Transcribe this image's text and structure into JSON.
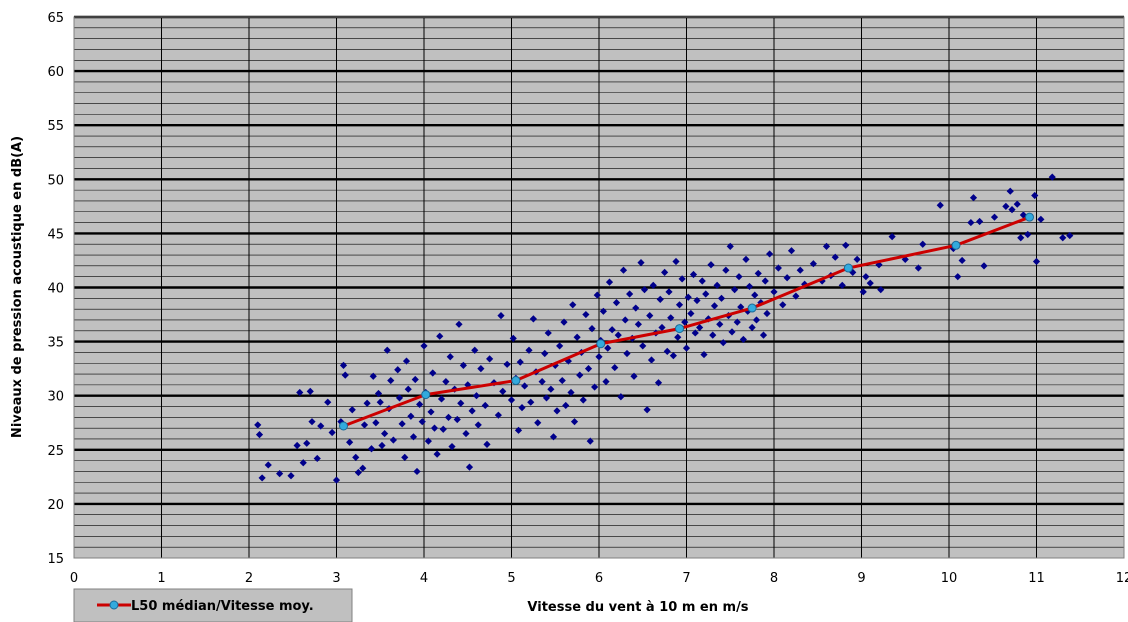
{
  "chart_data": {
    "type": "scatter",
    "title": "",
    "xlabel": "Vitesse du vent  à 10 m en m/s",
    "ylabel": "Niveaux de pression acoustique en dB(A)",
    "xlim": [
      0,
      12
    ],
    "ylim": [
      15,
      65
    ],
    "xticks": [
      "0",
      "1",
      "2",
      "3",
      "4",
      "5",
      "6",
      "7",
      "8",
      "9",
      "10",
      "11",
      "12"
    ],
    "yticks": [
      "15",
      "20",
      "25",
      "30",
      "35",
      "40",
      "45",
      "50",
      "55",
      "60",
      "65"
    ],
    "grid": true,
    "plot_background": "#c0c0c0",
    "legend": {
      "placement": "bottom-left",
      "entries": [
        "L50 médian/Vitesse moy."
      ]
    },
    "series": [
      {
        "name": "",
        "kind": "scatter",
        "marker": "diamond",
        "color": "#00008b",
        "points": [
          [
            2.1,
            27.3
          ],
          [
            2.12,
            26.4
          ],
          [
            2.15,
            22.4
          ],
          [
            2.22,
            23.6
          ],
          [
            2.35,
            22.8
          ],
          [
            2.48,
            22.6
          ],
          [
            2.55,
            25.4
          ],
          [
            2.58,
            30.3
          ],
          [
            2.62,
            23.8
          ],
          [
            2.66,
            25.6
          ],
          [
            2.7,
            30.4
          ],
          [
            2.72,
            27.6
          ],
          [
            2.78,
            24.2
          ],
          [
            2.82,
            27.2
          ],
          [
            2.9,
            29.4
          ],
          [
            2.95,
            26.6
          ],
          [
            3.0,
            22.2
          ],
          [
            3.05,
            27.6
          ],
          [
            3.08,
            32.8
          ],
          [
            3.1,
            31.9
          ],
          [
            3.15,
            25.7
          ],
          [
            3.18,
            28.7
          ],
          [
            3.22,
            24.3
          ],
          [
            3.25,
            22.9
          ],
          [
            3.3,
            23.3
          ],
          [
            3.32,
            27.3
          ],
          [
            3.35,
            29.3
          ],
          [
            3.4,
            25.1
          ],
          [
            3.42,
            31.8
          ],
          [
            3.45,
            27.5
          ],
          [
            3.48,
            30.2
          ],
          [
            3.5,
            29.4
          ],
          [
            3.52,
            25.4
          ],
          [
            3.55,
            26.5
          ],
          [
            3.58,
            34.2
          ],
          [
            3.6,
            28.8
          ],
          [
            3.62,
            31.4
          ],
          [
            3.65,
            25.9
          ],
          [
            3.7,
            32.4
          ],
          [
            3.72,
            29.8
          ],
          [
            3.75,
            27.4
          ],
          [
            3.78,
            24.3
          ],
          [
            3.8,
            33.2
          ],
          [
            3.82,
            30.6
          ],
          [
            3.85,
            28.1
          ],
          [
            3.88,
            26.2
          ],
          [
            3.9,
            31.5
          ],
          [
            3.92,
            23.0
          ],
          [
            3.95,
            29.2
          ],
          [
            3.98,
            27.6
          ],
          [
            4.0,
            34.6
          ],
          [
            4.02,
            30.3
          ],
          [
            4.05,
            25.8
          ],
          [
            4.08,
            28.5
          ],
          [
            4.1,
            32.1
          ],
          [
            4.12,
            27.0
          ],
          [
            4.15,
            24.6
          ],
          [
            4.18,
            35.5
          ],
          [
            4.2,
            29.7
          ],
          [
            4.22,
            26.9
          ],
          [
            4.25,
            31.3
          ],
          [
            4.28,
            28.0
          ],
          [
            4.3,
            33.6
          ],
          [
            4.32,
            25.3
          ],
          [
            4.35,
            30.6
          ],
          [
            4.38,
            27.8
          ],
          [
            4.4,
            36.6
          ],
          [
            4.42,
            29.3
          ],
          [
            4.45,
            32.8
          ],
          [
            4.48,
            26.5
          ],
          [
            4.5,
            31.0
          ],
          [
            4.52,
            23.4
          ],
          [
            4.55,
            28.6
          ],
          [
            4.58,
            34.2
          ],
          [
            4.6,
            30.0
          ],
          [
            4.62,
            27.3
          ],
          [
            4.65,
            32.5
          ],
          [
            4.7,
            29.1
          ],
          [
            4.72,
            25.5
          ],
          [
            4.75,
            33.4
          ],
          [
            4.8,
            31.2
          ],
          [
            4.85,
            28.2
          ],
          [
            4.88,
            37.4
          ],
          [
            4.9,
            30.4
          ],
          [
            4.95,
            32.9
          ],
          [
            5.0,
            29.6
          ],
          [
            5.02,
            35.3
          ],
          [
            5.05,
            31.6
          ],
          [
            5.08,
            26.8
          ],
          [
            5.1,
            33.1
          ],
          [
            5.12,
            28.9
          ],
          [
            5.15,
            30.9
          ],
          [
            5.2,
            34.2
          ],
          [
            5.22,
            29.4
          ],
          [
            5.25,
            37.1
          ],
          [
            5.28,
            32.2
          ],
          [
            5.3,
            27.5
          ],
          [
            5.35,
            31.3
          ],
          [
            5.38,
            33.9
          ],
          [
            5.4,
            29.8
          ],
          [
            5.42,
            35.8
          ],
          [
            5.45,
            30.6
          ],
          [
            5.48,
            26.2
          ],
          [
            5.5,
            32.8
          ],
          [
            5.52,
            28.6
          ],
          [
            5.55,
            34.6
          ],
          [
            5.58,
            31.4
          ],
          [
            5.6,
            36.8
          ],
          [
            5.62,
            29.1
          ],
          [
            5.65,
            33.2
          ],
          [
            5.68,
            30.3
          ],
          [
            5.7,
            38.4
          ],
          [
            5.72,
            27.6
          ],
          [
            5.75,
            35.4
          ],
          [
            5.78,
            31.9
          ],
          [
            5.8,
            34.0
          ],
          [
            5.82,
            29.6
          ],
          [
            5.85,
            37.5
          ],
          [
            5.88,
            32.5
          ],
          [
            5.9,
            25.8
          ],
          [
            5.92,
            36.2
          ],
          [
            5.95,
            30.8
          ],
          [
            5.98,
            39.3
          ],
          [
            6.0,
            33.6
          ],
          [
            6.02,
            35.1
          ],
          [
            6.05,
            37.8
          ],
          [
            6.08,
            31.3
          ],
          [
            6.1,
            34.4
          ],
          [
            6.12,
            40.5
          ],
          [
            6.15,
            36.1
          ],
          [
            6.18,
            32.6
          ],
          [
            6.2,
            38.6
          ],
          [
            6.22,
            35.6
          ],
          [
            6.25,
            29.9
          ],
          [
            6.28,
            41.6
          ],
          [
            6.3,
            37.0
          ],
          [
            6.32,
            33.9
          ],
          [
            6.35,
            39.4
          ],
          [
            6.38,
            35.3
          ],
          [
            6.4,
            31.8
          ],
          [
            6.42,
            38.1
          ],
          [
            6.45,
            36.6
          ],
          [
            6.48,
            42.3
          ],
          [
            6.5,
            34.6
          ],
          [
            6.52,
            39.8
          ],
          [
            6.55,
            28.7
          ],
          [
            6.58,
            37.4
          ],
          [
            6.6,
            33.3
          ],
          [
            6.62,
            40.2
          ],
          [
            6.65,
            35.8
          ],
          [
            6.68,
            31.2
          ],
          [
            6.7,
            38.9
          ],
          [
            6.72,
            36.3
          ],
          [
            6.75,
            41.4
          ],
          [
            6.78,
            34.1
          ],
          [
            6.8,
            39.6
          ],
          [
            6.82,
            37.2
          ],
          [
            6.85,
            33.7
          ],
          [
            6.88,
            42.4
          ],
          [
            6.9,
            35.4
          ],
          [
            6.92,
            38.4
          ],
          [
            6.95,
            40.8
          ],
          [
            6.98,
            36.8
          ],
          [
            7.0,
            34.4
          ],
          [
            7.02,
            39.1
          ],
          [
            7.05,
            37.6
          ],
          [
            7.08,
            41.2
          ],
          [
            7.1,
            35.8
          ],
          [
            7.12,
            38.8
          ],
          [
            7.15,
            36.3
          ],
          [
            7.18,
            40.6
          ],
          [
            7.2,
            33.8
          ],
          [
            7.22,
            39.4
          ],
          [
            7.25,
            37.1
          ],
          [
            7.28,
            42.1
          ],
          [
            7.3,
            35.6
          ],
          [
            7.32,
            38.3
          ],
          [
            7.35,
            40.2
          ],
          [
            7.38,
            36.6
          ],
          [
            7.4,
            39.0
          ],
          [
            7.42,
            34.9
          ],
          [
            7.45,
            41.6
          ],
          [
            7.48,
            37.4
          ],
          [
            7.5,
            43.8
          ],
          [
            7.52,
            35.9
          ],
          [
            7.55,
            39.8
          ],
          [
            7.58,
            36.8
          ],
          [
            7.6,
            41.0
          ],
          [
            7.62,
            38.2
          ],
          [
            7.65,
            35.2
          ],
          [
            7.68,
            42.6
          ],
          [
            7.7,
            37.8
          ],
          [
            7.72,
            40.1
          ],
          [
            7.75,
            36.3
          ],
          [
            7.78,
            39.3
          ],
          [
            7.8,
            37.0
          ],
          [
            7.82,
            41.3
          ],
          [
            7.85,
            38.6
          ],
          [
            7.88,
            35.6
          ],
          [
            7.9,
            40.6
          ],
          [
            7.92,
            37.6
          ],
          [
            7.95,
            43.1
          ],
          [
            8.0,
            39.6
          ],
          [
            8.05,
            41.8
          ],
          [
            8.1,
            38.4
          ],
          [
            8.15,
            40.9
          ],
          [
            8.2,
            43.4
          ],
          [
            8.25,
            39.2
          ],
          [
            8.3,
            41.6
          ],
          [
            8.35,
            40.3
          ],
          [
            8.45,
            42.2
          ],
          [
            8.55,
            40.6
          ],
          [
            8.6,
            43.8
          ],
          [
            8.65,
            41.1
          ],
          [
            8.7,
            42.8
          ],
          [
            8.78,
            40.2
          ],
          [
            8.82,
            43.9
          ],
          [
            8.9,
            41.4
          ],
          [
            8.95,
            42.6
          ],
          [
            9.02,
            39.6
          ],
          [
            9.05,
            41.0
          ],
          [
            9.1,
            40.4
          ],
          [
            9.2,
            42.1
          ],
          [
            9.22,
            39.8
          ],
          [
            9.35,
            44.7
          ],
          [
            9.5,
            42.6
          ],
          [
            9.65,
            41.8
          ],
          [
            9.7,
            44.0
          ],
          [
            9.9,
            47.6
          ],
          [
            10.05,
            43.6
          ],
          [
            10.1,
            41.0
          ],
          [
            10.15,
            42.5
          ],
          [
            10.25,
            46.0
          ],
          [
            10.28,
            48.3
          ],
          [
            10.35,
            46.1
          ],
          [
            10.4,
            42.0
          ],
          [
            10.52,
            46.5
          ],
          [
            10.65,
            47.5
          ],
          [
            10.7,
            48.9
          ],
          [
            10.72,
            47.2
          ],
          [
            10.78,
            47.7
          ],
          [
            10.82,
            44.6
          ],
          [
            10.85,
            46.7
          ],
          [
            10.9,
            44.9
          ],
          [
            10.98,
            48.5
          ],
          [
            11.0,
            42.4
          ],
          [
            11.05,
            46.3
          ],
          [
            11.18,
            50.2
          ],
          [
            11.3,
            44.6
          ],
          [
            11.38,
            44.8
          ]
        ]
      },
      {
        "name": "L50 médian/Vitesse moy.",
        "kind": "line",
        "color": "#cc0000",
        "marker_color": "#33aadd",
        "points": [
          [
            3.08,
            27.2
          ],
          [
            4.02,
            30.1
          ],
          [
            5.05,
            31.4
          ],
          [
            6.02,
            34.8
          ],
          [
            6.92,
            36.2
          ],
          [
            7.75,
            38.1
          ],
          [
            8.85,
            41.8
          ],
          [
            10.08,
            43.9
          ],
          [
            10.92,
            46.5
          ]
        ]
      }
    ]
  }
}
